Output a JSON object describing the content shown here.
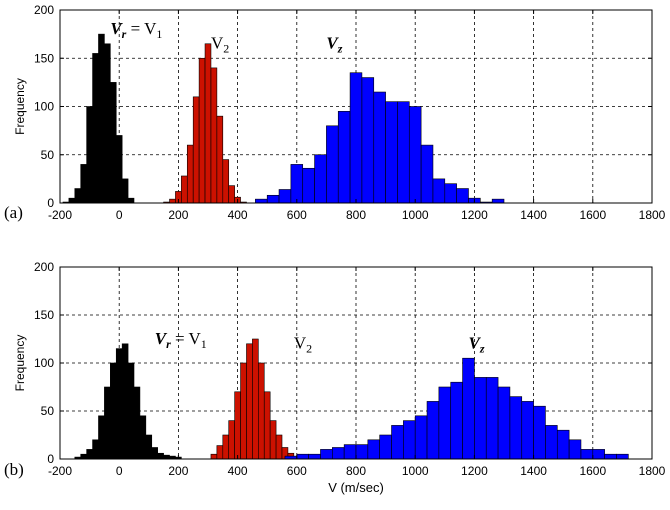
{
  "chart_data": [
    {
      "type": "bar",
      "panel_label": "(a)",
      "ylabel": "Frequency",
      "xlabel": "",
      "xlim": [
        -200,
        1800
      ],
      "ylim": [
        0,
        200
      ],
      "xticks": [
        -200,
        0,
        200,
        400,
        600,
        800,
        1000,
        1200,
        1400,
        1600,
        1800
      ],
      "yticks": [
        0,
        50,
        100,
        150,
        200
      ],
      "grid": true,
      "bin_width": 20,
      "series": [
        {
          "color": "#000000",
          "x": [
            -180,
            -160,
            -140,
            -120,
            -100,
            -80,
            -60,
            -40,
            -20,
            0,
            20,
            40
          ],
          "values": [
            1,
            5,
            15,
            40,
            100,
            155,
            175,
            165,
            125,
            70,
            25,
            5
          ]
        },
        {
          "color": "#cc1100",
          "x": [
            160,
            180,
            200,
            220,
            240,
            260,
            280,
            300,
            320,
            340,
            360,
            380,
            400,
            420
          ],
          "values": [
            1,
            4,
            12,
            28,
            60,
            110,
            150,
            165,
            140,
            90,
            45,
            18,
            6,
            1
          ]
        },
        {
          "color": "#0000ff",
          "bin_width": 40,
          "x": [
            480,
            520,
            560,
            600,
            640,
            680,
            720,
            760,
            800,
            840,
            880,
            920,
            960,
            1000,
            1040,
            1080,
            1120,
            1160,
            1200,
            1240,
            1280
          ],
          "values": [
            4,
            8,
            14,
            40,
            36,
            50,
            80,
            95,
            135,
            130,
            115,
            105,
            105,
            100,
            60,
            25,
            20,
            15,
            5,
            1,
            4
          ]
        }
      ],
      "annotations": [
        {
          "italic_symbol": "V",
          "subscript": "r",
          "rest": " = V",
          "rest_subscript": "1",
          "x": -30,
          "y": 175
        },
        {
          "italic_symbol": "",
          "subscript": "",
          "rest": "V",
          "rest_subscript": "2",
          "x": 310,
          "y": 160
        },
        {
          "italic_symbol": "V",
          "subscript": "z",
          "rest": "",
          "rest_subscript": "",
          "x": 700,
          "y": 160
        }
      ]
    },
    {
      "type": "bar",
      "panel_label": "(b)",
      "ylabel": "Frequency",
      "xlabel": "V (m/sec)",
      "xlim": [
        -200,
        1800
      ],
      "ylim": [
        0,
        200
      ],
      "xticks": [
        -200,
        0,
        200,
        400,
        600,
        800,
        1000,
        1200,
        1400,
        1600,
        1800
      ],
      "yticks": [
        0,
        50,
        100,
        150,
        200
      ],
      "grid": true,
      "bin_width": 20,
      "series": [
        {
          "color": "#000000",
          "x": [
            -140,
            -120,
            -100,
            -80,
            -60,
            -40,
            -20,
            0,
            20,
            40,
            60,
            80,
            100,
            120,
            140,
            160,
            180,
            200
          ],
          "values": [
            2,
            5,
            10,
            20,
            45,
            75,
            100,
            115,
            120,
            100,
            75,
            45,
            25,
            12,
            6,
            4,
            3,
            2
          ]
        },
        {
          "color": "#cc1100",
          "x": [
            320,
            340,
            360,
            380,
            400,
            420,
            440,
            460,
            480,
            500,
            520,
            540,
            560,
            580,
            600
          ],
          "values": [
            5,
            14,
            25,
            40,
            70,
            100,
            120,
            125,
            100,
            70,
            40,
            25,
            12,
            6,
            2
          ]
        },
        {
          "color": "#0000ff",
          "bin_width": 40,
          "x": [
            580,
            620,
            660,
            700,
            740,
            780,
            820,
            860,
            900,
            940,
            980,
            1020,
            1060,
            1100,
            1140,
            1180,
            1220,
            1260,
            1300,
            1340,
            1380,
            1420,
            1460,
            1500,
            1540,
            1580,
            1620,
            1660,
            1700
          ],
          "values": [
            3,
            5,
            5,
            10,
            12,
            15,
            15,
            20,
            25,
            35,
            40,
            45,
            60,
            75,
            80,
            105,
            85,
            85,
            75,
            65,
            60,
            55,
            35,
            30,
            20,
            10,
            10,
            5,
            5
          ]
        }
      ],
      "annotations": [
        {
          "italic_symbol": "V",
          "subscript": "r",
          "rest": " = V",
          "rest_subscript": "1",
          "x": 120,
          "y": 120
        },
        {
          "italic_symbol": "",
          "subscript": "",
          "rest": "V",
          "rest_subscript": "2",
          "x": 590,
          "y": 115
        },
        {
          "italic_symbol": "V",
          "subscript": "z",
          "rest": "",
          "rest_subscript": "",
          "x": 1180,
          "y": 115
        }
      ]
    }
  ]
}
